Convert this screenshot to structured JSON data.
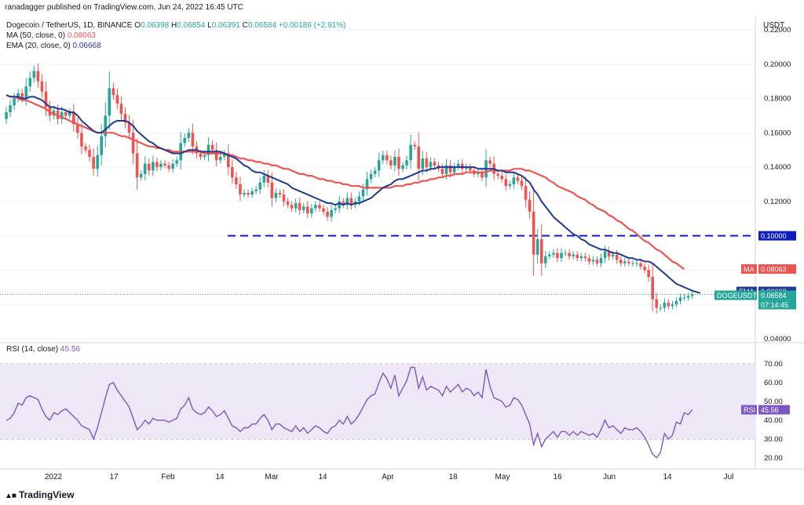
{
  "header": {
    "publisher": "ranadagger published on TradingView.com, Jun 24, 2022 16:45 UTC",
    "symbol": "Dogecoin / TetherUS, 1D, BINANCE",
    "o_label": "O",
    "o": "0.06398",
    "h_label": "H",
    "h": "0.06854",
    "l_label": "L",
    "l": "0.06391",
    "c_label": "C",
    "c": "0.06584",
    "change": "+0.00186 (+2.91%)",
    "ma_label": "MA (50, close, 0)",
    "ma_value": "0.08063",
    "ema_label": "EMA (20, close, 0)",
    "ema_value": "0.06668",
    "rsi_label": "RSI (14, close)",
    "rsi_value": "45.56",
    "currency": "USDT"
  },
  "footer": {
    "brand": "TradingView"
  },
  "colors": {
    "up": "#26a69a",
    "down": "#ef5350",
    "ma": "#ef5350",
    "ema": "#1f3a93",
    "rsi": "#7e57c2",
    "rsi_band": "#ede7f6",
    "level_line": "#0d1fbf",
    "grid": "#eef0f3"
  },
  "chart_data": [
    {
      "type": "candlestick",
      "title": "Dogecoin / TetherUS, 1D, BINANCE",
      "ylabel": "USDT",
      "ylim": [
        0.04,
        0.22
      ],
      "y_ticks": [
        "0.04000",
        "0.06000",
        "0.08000",
        "0.10000",
        "0.12000",
        "0.14000",
        "0.16000",
        "0.18000",
        "0.20000",
        "0.22000"
      ],
      "x_ticks": [
        "2022",
        "17",
        "Feb",
        "14",
        "Mar",
        "14",
        "Apr",
        "18",
        "May",
        "16",
        "Jun",
        "14",
        "Jul"
      ],
      "horizontal_level": {
        "value": 0.1,
        "label": "0.10000"
      },
      "price_labels": [
        {
          "name": "MA",
          "value": "0.08063"
        },
        {
          "name": "EMA",
          "value": "0.06668"
        },
        {
          "name": "DOGEUSDT",
          "value": "0.06584",
          "countdown": "07:14:45"
        }
      ],
      "close": [
        0.172,
        0.176,
        0.18,
        0.183,
        0.18,
        0.187,
        0.192,
        0.196,
        0.19,
        0.184,
        0.175,
        0.17,
        0.173,
        0.168,
        0.172,
        0.17,
        0.172,
        0.165,
        0.16,
        0.152,
        0.15,
        0.146,
        0.139,
        0.147,
        0.158,
        0.17,
        0.186,
        0.182,
        0.177,
        0.171,
        0.166,
        0.16,
        0.148,
        0.134,
        0.136,
        0.142,
        0.138,
        0.143,
        0.14,
        0.142,
        0.141,
        0.139,
        0.142,
        0.144,
        0.154,
        0.157,
        0.16,
        0.152,
        0.148,
        0.146,
        0.147,
        0.153,
        0.15,
        0.144,
        0.146,
        0.148,
        0.14,
        0.134,
        0.13,
        0.124,
        0.125,
        0.124,
        0.126,
        0.127,
        0.131,
        0.135,
        0.131,
        0.122,
        0.125,
        0.124,
        0.12,
        0.118,
        0.116,
        0.119,
        0.115,
        0.117,
        0.113,
        0.116,
        0.118,
        0.116,
        0.114,
        0.111,
        0.115,
        0.116,
        0.12,
        0.118,
        0.122,
        0.118,
        0.12,
        0.123,
        0.127,
        0.133,
        0.136,
        0.138,
        0.144,
        0.147,
        0.144,
        0.141,
        0.146,
        0.139,
        0.141,
        0.144,
        0.153,
        0.152,
        0.139,
        0.145,
        0.14,
        0.143,
        0.141,
        0.139,
        0.136,
        0.141,
        0.137,
        0.14,
        0.142,
        0.139,
        0.14,
        0.138,
        0.136,
        0.137,
        0.134,
        0.144,
        0.142,
        0.136,
        0.135,
        0.133,
        0.129,
        0.13,
        0.134,
        0.132,
        0.129,
        0.121,
        0.114,
        0.089,
        0.098,
        0.084,
        0.088,
        0.089,
        0.09,
        0.087,
        0.09,
        0.09,
        0.088,
        0.089,
        0.087,
        0.088,
        0.087,
        0.085,
        0.086,
        0.084,
        0.087,
        0.091,
        0.088,
        0.089,
        0.086,
        0.084,
        0.085,
        0.084,
        0.084,
        0.084,
        0.082,
        0.08,
        0.076,
        0.063,
        0.058,
        0.058,
        0.061,
        0.059,
        0.06,
        0.062,
        0.064,
        0.064,
        0.065,
        0.0658
      ],
      "ma50": [
        0.182,
        0.181,
        0.181,
        0.18,
        0.179,
        0.179,
        0.178,
        0.177,
        0.176,
        0.175,
        0.174,
        0.172,
        0.171,
        0.17,
        0.169,
        0.168,
        0.167,
        0.166,
        0.165,
        0.164,
        0.163,
        0.162,
        0.161,
        0.16,
        0.16,
        0.16,
        0.16,
        0.16,
        0.159,
        0.158,
        0.158,
        0.157,
        0.156,
        0.155,
        0.154,
        0.153,
        0.152,
        0.152,
        0.151,
        0.151,
        0.15,
        0.15,
        0.149,
        0.149,
        0.149,
        0.149,
        0.149,
        0.149,
        0.149,
        0.149,
        0.148,
        0.148,
        0.148,
        0.148,
        0.148,
        0.148,
        0.147,
        0.147,
        0.146,
        0.145,
        0.145,
        0.144,
        0.144,
        0.143,
        0.143,
        0.142,
        0.142,
        0.141,
        0.141,
        0.14,
        0.139,
        0.139,
        0.138,
        0.137,
        0.136,
        0.136,
        0.135,
        0.135,
        0.134,
        0.133,
        0.133,
        0.132,
        0.132,
        0.131,
        0.131,
        0.13,
        0.13,
        0.129,
        0.129,
        0.129,
        0.128,
        0.128,
        0.128,
        0.128,
        0.128,
        0.128,
        0.128,
        0.128,
        0.129,
        0.129,
        0.129,
        0.13,
        0.13,
        0.131,
        0.131,
        0.132,
        0.132,
        0.133,
        0.133,
        0.134,
        0.134,
        0.135,
        0.135,
        0.136,
        0.136,
        0.136,
        0.137,
        0.137,
        0.137,
        0.137,
        0.137,
        0.137,
        0.138,
        0.138,
        0.138,
        0.138,
        0.138,
        0.138,
        0.139,
        0.139,
        0.139,
        0.138,
        0.138,
        0.137,
        0.136,
        0.135,
        0.134,
        0.132,
        0.131,
        0.129,
        0.128,
        0.127,
        0.126,
        0.125,
        0.123,
        0.122,
        0.121,
        0.119,
        0.118,
        0.116,
        0.115,
        0.114,
        0.112,
        0.111,
        0.109,
        0.108,
        0.106,
        0.104,
        0.103,
        0.101,
        0.099,
        0.097,
        0.096,
        0.094,
        0.092,
        0.091,
        0.089,
        0.087,
        0.085,
        0.084,
        0.0822,
        0.0806
      ],
      "ema20": [
        0.182,
        0.181,
        0.181,
        0.181,
        0.18,
        0.18,
        0.181,
        0.181,
        0.18,
        0.179,
        0.177,
        0.175,
        0.175,
        0.174,
        0.174,
        0.173,
        0.172,
        0.172,
        0.17,
        0.167,
        0.165,
        0.163,
        0.161,
        0.16,
        0.16,
        0.162,
        0.164,
        0.166,
        0.167,
        0.167,
        0.167,
        0.166,
        0.164,
        0.161,
        0.159,
        0.157,
        0.155,
        0.154,
        0.152,
        0.151,
        0.15,
        0.149,
        0.148,
        0.148,
        0.148,
        0.149,
        0.15,
        0.15,
        0.15,
        0.149,
        0.149,
        0.149,
        0.149,
        0.149,
        0.149,
        0.148,
        0.147,
        0.146,
        0.145,
        0.143,
        0.141,
        0.14,
        0.138,
        0.137,
        0.137,
        0.136,
        0.135,
        0.134,
        0.133,
        0.132,
        0.131,
        0.13,
        0.128,
        0.127,
        0.126,
        0.125,
        0.124,
        0.123,
        0.122,
        0.121,
        0.12,
        0.119,
        0.119,
        0.118,
        0.119,
        0.118,
        0.119,
        0.118,
        0.119,
        0.119,
        0.12,
        0.121,
        0.122,
        0.124,
        0.126,
        0.128,
        0.129,
        0.13,
        0.132,
        0.133,
        0.133,
        0.134,
        0.135,
        0.136,
        0.137,
        0.138,
        0.138,
        0.139,
        0.139,
        0.14,
        0.14,
        0.14,
        0.14,
        0.14,
        0.14,
        0.14,
        0.14,
        0.14,
        0.14,
        0.139,
        0.139,
        0.139,
        0.139,
        0.139,
        0.138,
        0.138,
        0.137,
        0.137,
        0.137,
        0.136,
        0.135,
        0.133,
        0.131,
        0.127,
        0.124,
        0.12,
        0.117,
        0.114,
        0.111,
        0.109,
        0.107,
        0.105,
        0.103,
        0.101,
        0.1,
        0.098,
        0.097,
        0.095,
        0.094,
        0.093,
        0.092,
        0.092,
        0.091,
        0.09,
        0.09,
        0.089,
        0.088,
        0.087,
        0.087,
        0.086,
        0.086,
        0.085,
        0.085,
        0.084,
        0.082,
        0.08,
        0.078,
        0.076,
        0.074,
        0.072,
        0.071,
        0.07,
        0.069,
        0.068,
        0.0673,
        0.0667
      ]
    },
    {
      "type": "line",
      "title": "RSI (14, close)",
      "ylim": [
        15,
        77
      ],
      "y_ticks": [
        "20.00",
        "30.00",
        "40.00",
        "50.00",
        "60.00",
        "70.00"
      ],
      "band": [
        30,
        70
      ],
      "mid": 50,
      "current_label": {
        "name": "RSI",
        "value": "45.56"
      },
      "values": [
        40,
        41,
        44,
        49,
        48,
        52,
        53,
        52,
        51,
        46,
        42,
        40,
        44,
        43,
        45,
        46,
        44,
        42,
        40,
        37,
        36,
        35,
        30,
        36,
        44,
        52,
        59,
        60,
        56,
        53,
        50,
        47,
        41,
        35,
        37,
        40,
        38,
        41,
        40,
        40,
        40,
        39,
        40,
        41,
        46,
        48,
        52,
        46,
        44,
        43,
        44,
        47,
        45,
        42,
        43,
        45,
        41,
        37,
        36,
        34,
        36,
        36,
        38,
        38,
        41,
        43,
        40,
        35,
        38,
        38,
        36,
        35,
        34,
        37,
        34,
        36,
        33,
        35,
        37,
        36,
        34,
        33,
        36,
        37,
        40,
        38,
        42,
        38,
        40,
        43,
        47,
        51,
        53,
        54,
        60,
        65,
        62,
        57,
        64,
        53,
        57,
        61,
        68,
        68,
        57,
        63,
        56,
        58,
        57,
        56,
        53,
        58,
        55,
        57,
        59,
        55,
        57,
        56,
        53,
        55,
        52,
        67,
        58,
        52,
        51,
        50,
        47,
        48,
        52,
        51,
        48,
        43,
        38,
        27,
        33,
        26,
        30,
        32,
        34,
        31,
        34,
        34,
        32,
        34,
        32,
        34,
        33,
        32,
        33,
        31,
        35,
        40,
        36,
        37,
        35,
        33,
        36,
        35,
        35,
        36,
        34,
        31,
        27,
        22,
        20,
        23,
        33,
        30,
        32,
        39,
        38,
        44,
        43,
        45.56
      ]
    }
  ]
}
